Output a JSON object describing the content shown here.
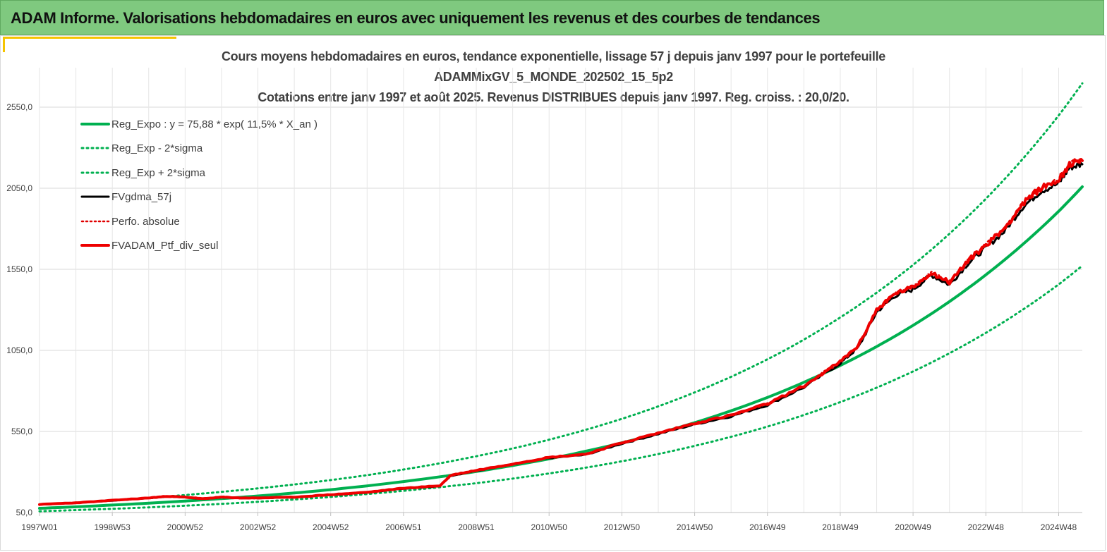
{
  "banner": {
    "title": "ADAM Informe. Valorisations hebdomadaires en euros avec uniquement les revenus et des courbes de tendances"
  },
  "chart_data": {
    "type": "line",
    "title": [
      "Cours moyens hebdomadaires  en euros, tendance exponentielle, lissage 57 j depuis janv 1997 pour le portefeuille",
      "ADAMMixGV_5_MONDE_202502_15_5p2",
      "Cotations  entre janv 1997 et août 2025. Revenus DISTRIBUES depuis janv 1997. Reg. croiss. : 20,0/20."
    ],
    "xlabel": "",
    "ylabel": "",
    "ylim": [
      50,
      2850
    ],
    "yticks": [
      "50,0",
      "550,0",
      "1050,0",
      "1550,0",
      "2050,0",
      "2550,0"
    ],
    "ytick_values": [
      50,
      550,
      1050,
      1550,
      2050,
      2550
    ],
    "xlim": [
      1997.0,
      2025.65
    ],
    "xticks": [
      "1997W01",
      "1998W53",
      "2000W52",
      "2002W52",
      "2004W52",
      "2006W51",
      "2008W51",
      "2010W50",
      "2012W50",
      "2014W50",
      "2016W49",
      "2018W49",
      "2020W49",
      "2022W48",
      "2024W48"
    ],
    "xtick_values": [
      1997.0,
      1999.0,
      2001.0,
      2003.0,
      2005.0,
      2007.0,
      2009.0,
      2011.0,
      2013.0,
      2015.0,
      2017.0,
      2019.0,
      2021.0,
      2023.0,
      2025.0
    ],
    "grid": true,
    "legend_position": "top-left",
    "colors": {
      "reg_expo": "#00b050",
      "sigma": "#00b050",
      "fvgdma": "#000000",
      "perfo": "#e00000",
      "ptf": "#ee0000",
      "grid": "#d9d9d9"
    },
    "series": [
      {
        "name": "Reg_Expo : y = 75,88 * exp( 11,5% *  X_an )",
        "style": "solid",
        "color": "#00b050",
        "x": [
          1997.0,
          1999.0,
          2001.0,
          2003.0,
          2005.0,
          2007.0,
          2009.0,
          2011.0,
          2013.0,
          2015.0,
          2017.0,
          2019.0,
          2021.0,
          2023.0,
          2025.0,
          2025.65
        ],
        "y": [
          76,
          96,
          121,
          152,
          191,
          241,
          303,
          381,
          480,
          604,
          760,
          957,
          1204,
          1516,
          1908,
          2059
        ]
      },
      {
        "name": "Reg_Exp - 2*sigma",
        "style": "dotted",
        "color": "#00b050",
        "x": [
          1997.0,
          1999.0,
          2001.0,
          2003.0,
          2005.0,
          2007.0,
          2009.0,
          2011.0,
          2013.0,
          2015.0,
          2017.0,
          2019.0,
          2021.0,
          2023.0,
          2025.0,
          2025.65
        ],
        "y": [
          58,
          73,
          92,
          116,
          146,
          184,
          231,
          291,
          366,
          461,
          580,
          731,
          920,
          1158,
          1457,
          1572
        ]
      },
      {
        "name": "Reg_Exp + 2*sigma",
        "style": "dotted",
        "color": "#00b050",
        "x": [
          1997.0,
          1999.0,
          2001.0,
          2003.0,
          2005.0,
          2007.0,
          2009.0,
          2011.0,
          2013.0,
          2015.0,
          2017.0,
          2019.0,
          2021.0,
          2023.0,
          2025.0,
          2025.65
        ],
        "y": [
          99,
          125,
          158,
          199,
          250,
          315,
          397,
          499,
          628,
          791,
          995,
          1253,
          1577,
          1985,
          2499,
          2697
        ]
      },
      {
        "name": "FVgdma_57j",
        "style": "solid",
        "color": "#000000",
        "x": [
          1997.0,
          1998.0,
          1999.0,
          2000.0,
          2000.5,
          2001.0,
          2001.5,
          2002.0,
          2002.5,
          2003.0,
          2004.0,
          2005.0,
          2006.0,
          2007.0,
          2008.0,
          2008.3,
          2009.0,
          2010.0,
          2011.0,
          2012.0,
          2013.0,
          2014.0,
          2015.0,
          2016.0,
          2017.0,
          2018.0,
          2019.0,
          2019.5,
          2020.0,
          2020.5,
          2021.0,
          2021.5,
          2022.0,
          2022.5,
          2023.0,
          2023.5,
          2024.0,
          2024.5,
          2025.0,
          2025.3,
          2025.65
        ],
        "y": [
          100,
          110,
          125,
          140,
          150,
          145,
          135,
          145,
          140,
          140,
          145,
          160,
          175,
          200,
          215,
          280,
          310,
          350,
          390,
          410,
          480,
          540,
          600,
          650,
          720,
          830,
          980,
          1080,
          1300,
          1400,
          1440,
          1530,
          1470,
          1600,
          1700,
          1800,
          1950,
          2050,
          2100,
          2200,
          2220
        ]
      },
      {
        "name": "Perfo. absolue",
        "style": "dotted",
        "color": "#e00000",
        "x": [
          1997.0,
          1998.0,
          1999.0,
          2000.0,
          2000.5,
          2001.0,
          2001.5,
          2002.0,
          2002.5,
          2003.0,
          2004.0,
          2005.0,
          2006.0,
          2007.0,
          2008.0,
          2008.3,
          2009.0,
          2010.0,
          2011.0,
          2012.0,
          2013.0,
          2014.0,
          2015.0,
          2016.0,
          2017.0,
          2018.0,
          2019.0,
          2019.5,
          2020.0,
          2020.5,
          2021.0,
          2021.5,
          2022.0,
          2022.5,
          2023.0,
          2023.5,
          2024.0,
          2024.5,
          2025.0,
          2025.3,
          2025.65
        ],
        "y": [
          100,
          110,
          125,
          140,
          150,
          145,
          135,
          145,
          140,
          140,
          145,
          160,
          175,
          200,
          215,
          280,
          310,
          350,
          390,
          410,
          480,
          540,
          600,
          650,
          720,
          830,
          980,
          1080,
          1300,
          1400,
          1440,
          1530,
          1470,
          1600,
          1700,
          1800,
          1950,
          2050,
          2100,
          2200,
          2220
        ]
      },
      {
        "name": "FVADAM_Ptf_div_seul",
        "style": "solid",
        "color": "#ee0000",
        "x": [
          1997.0,
          1998.0,
          1999.0,
          2000.0,
          2000.5,
          2001.0,
          2001.5,
          2002.0,
          2002.5,
          2003.0,
          2004.0,
          2005.0,
          2006.0,
          2007.0,
          2008.0,
          2008.3,
          2009.0,
          2010.0,
          2011.0,
          2012.0,
          2013.0,
          2014.0,
          2015.0,
          2016.0,
          2017.0,
          2018.0,
          2019.0,
          2019.5,
          2020.0,
          2020.5,
          2021.0,
          2021.5,
          2022.0,
          2022.5,
          2023.0,
          2023.5,
          2024.0,
          2024.5,
          2025.0,
          2025.3,
          2025.65
        ],
        "y": [
          100,
          110,
          125,
          140,
          150,
          145,
          135,
          145,
          140,
          140,
          145,
          160,
          175,
          200,
          215,
          280,
          310,
          350,
          390,
          410,
          480,
          540,
          600,
          650,
          720,
          830,
          980,
          1080,
          1300,
          1400,
          1440,
          1530,
          1470,
          1600,
          1700,
          1800,
          1950,
          2050,
          2100,
          2200,
          2220
        ]
      }
    ]
  }
}
